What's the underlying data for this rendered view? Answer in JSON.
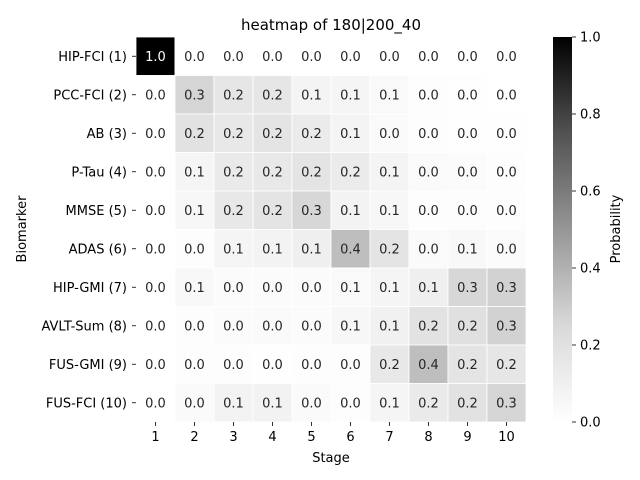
{
  "chart_data": {
    "type": "heatmap",
    "title": "heatmap of 180|200_40",
    "xlabel": "Stage",
    "ylabel": "Biomarker",
    "colorbar_label": "Probability",
    "x": [
      "1",
      "2",
      "3",
      "4",
      "5",
      "6",
      "7",
      "8",
      "9",
      "10"
    ],
    "y": [
      "HIP-FCI (1)",
      "PCC-FCI (2)",
      "AB (3)",
      "P-Tau (4)",
      "MMSE (5)",
      "ADAS (6)",
      "HIP-GMI (7)",
      "AVLT-Sum (8)",
      "FUS-GMI (9)",
      "FUS-FCI (10)"
    ],
    "values": [
      [
        1.0,
        0.0,
        0.0,
        0.0,
        0.0,
        0.0,
        0.0,
        0.0,
        0.0,
        0.0
      ],
      [
        0.0,
        0.3,
        0.2,
        0.2,
        0.1,
        0.1,
        0.1,
        0.0,
        0.0,
        0.0
      ],
      [
        0.0,
        0.2,
        0.2,
        0.2,
        0.2,
        0.1,
        0.0,
        0.0,
        0.0,
        0.0
      ],
      [
        0.0,
        0.1,
        0.2,
        0.2,
        0.2,
        0.2,
        0.1,
        0.0,
        0.0,
        0.0
      ],
      [
        0.0,
        0.1,
        0.2,
        0.2,
        0.3,
        0.1,
        0.1,
        0.0,
        0.0,
        0.0
      ],
      [
        0.0,
        0.0,
        0.1,
        0.1,
        0.1,
        0.4,
        0.2,
        0.0,
        0.1,
        0.0
      ],
      [
        0.0,
        0.1,
        0.0,
        0.0,
        0.0,
        0.1,
        0.1,
        0.1,
        0.3,
        0.3
      ],
      [
        0.0,
        0.0,
        0.0,
        0.0,
        0.0,
        0.1,
        0.1,
        0.2,
        0.2,
        0.3
      ],
      [
        0.0,
        0.0,
        0.0,
        0.0,
        0.0,
        0.0,
        0.2,
        0.4,
        0.2,
        0.2
      ],
      [
        0.0,
        0.0,
        0.1,
        0.1,
        0.0,
        0.0,
        0.1,
        0.2,
        0.2,
        0.3
      ]
    ],
    "shades": [
      [
        1.0,
        0.0,
        0.0,
        0.0,
        0.0,
        0.0,
        0.0,
        0.0,
        0.0,
        0.0
      ],
      [
        0.0,
        0.27,
        0.18,
        0.18,
        0.09,
        0.08,
        0.05,
        0.02,
        0.01,
        0.0
      ],
      [
        0.0,
        0.2,
        0.17,
        0.19,
        0.15,
        0.09,
        0.04,
        0.02,
        0.01,
        0.01
      ],
      [
        0.0,
        0.08,
        0.16,
        0.17,
        0.19,
        0.15,
        0.09,
        0.04,
        0.03,
        0.02
      ],
      [
        0.0,
        0.07,
        0.17,
        0.19,
        0.26,
        0.1,
        0.07,
        0.02,
        0.02,
        0.02
      ],
      [
        0.0,
        0.02,
        0.08,
        0.1,
        0.13,
        0.37,
        0.19,
        0.04,
        0.06,
        0.03
      ],
      [
        0.0,
        0.06,
        0.03,
        0.03,
        0.03,
        0.05,
        0.08,
        0.13,
        0.26,
        0.28
      ],
      [
        0.0,
        0.02,
        0.03,
        0.04,
        0.03,
        0.07,
        0.12,
        0.2,
        0.21,
        0.28
      ],
      [
        0.0,
        0.02,
        0.02,
        0.01,
        0.02,
        0.02,
        0.17,
        0.37,
        0.19,
        0.18
      ],
      [
        0.0,
        0.04,
        0.1,
        0.11,
        0.04,
        0.02,
        0.08,
        0.16,
        0.2,
        0.27
      ]
    ],
    "colorbar": {
      "min": 0.0,
      "max": 1.0,
      "ticks": [
        "0.0",
        "0.2",
        "0.4",
        "0.6",
        "0.8",
        "1.0"
      ]
    },
    "colormap": "Greys"
  }
}
